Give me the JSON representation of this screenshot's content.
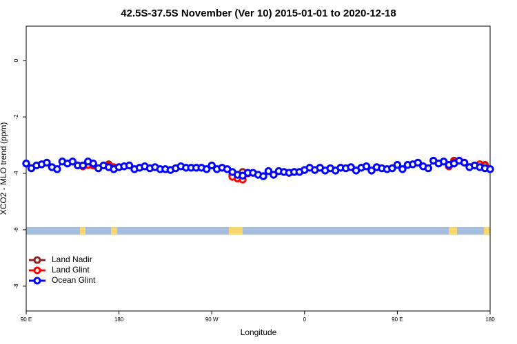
{
  "chart_data": {
    "type": "line",
    "title": "42.5S-37.5S November (Ver 10)   2015-01-01 to 2020-12-18",
    "x_label": "Longitude",
    "y_label": "XCO2 - MLO trend (ppm)",
    "x": [
      90,
      95,
      100,
      105,
      110,
      115,
      120,
      125,
      130,
      135,
      140,
      145,
      150,
      155,
      160,
      165,
      170,
      175,
      180,
      185,
      190,
      195,
      200,
      205,
      210,
      215,
      220,
      225,
      230,
      235,
      240,
      245,
      250,
      255,
      260,
      265,
      270,
      275,
      280,
      285,
      290,
      295,
      300,
      305,
      310,
      315,
      320,
      325,
      330,
      335,
      340,
      345,
      350,
      355,
      360,
      365,
      370,
      375,
      380,
      385,
      390,
      395,
      400,
      405,
      410,
      415,
      420,
      425,
      430,
      435,
      440,
      445,
      450,
      455,
      460,
      465,
      470,
      475,
      480,
      485,
      490,
      495,
      500,
      505,
      510,
      515,
      520,
      525,
      530,
      535,
      540
    ],
    "xlim": [
      90,
      540
    ],
    "xticks": [
      {
        "value": 90,
        "label": "90 E"
      },
      180,
      {
        "value": 270,
        "label": "90 W"
      },
      {
        "value": 360,
        "label": "0"
      },
      {
        "value": 450,
        "label": "90 E"
      },
      {
        "value": 540,
        "label": "180"
      }
    ],
    "ylim": [
      -8.88,
      1.22
    ],
    "yticks": [
      0,
      -2,
      -4,
      -6,
      -8
    ],
    "legend": "bottomleft",
    "series": [
      {
        "name": "Land Nadir",
        "color": "#8b2323",
        "values": [
          null,
          null,
          null,
          null,
          null,
          null,
          null,
          null,
          null,
          null,
          null,
          null,
          -3.6,
          null,
          null,
          null,
          -3.68,
          null,
          null,
          null,
          null,
          null,
          null,
          null,
          null,
          null,
          null,
          null,
          null,
          null,
          null,
          null,
          null,
          null,
          null,
          null,
          null,
          null,
          null,
          null,
          -4.05,
          null,
          -3.95,
          null,
          null,
          null,
          null,
          null,
          null,
          null,
          null,
          null,
          null,
          null,
          null,
          null,
          null,
          null,
          null,
          null,
          null,
          null,
          null,
          null,
          null,
          null,
          null,
          null,
          null,
          null,
          null,
          null,
          null,
          null,
          null,
          null,
          null,
          null,
          null,
          null,
          null,
          null,
          null,
          -3.55,
          null,
          null,
          null,
          null,
          null,
          -3.7,
          null
        ]
      },
      {
        "name": "Land Glint",
        "color": "#ff0000",
        "values": [
          null,
          null,
          null,
          null,
          null,
          null,
          null,
          null,
          null,
          null,
          null,
          -3.75,
          -3.7,
          -3.72,
          null,
          null,
          -3.72,
          -3.78,
          null,
          null,
          null,
          null,
          null,
          null,
          null,
          null,
          null,
          null,
          null,
          null,
          null,
          null,
          null,
          null,
          null,
          null,
          null,
          null,
          null,
          null,
          -4.12,
          -4.18,
          -4.22,
          -4.0,
          null,
          null,
          null,
          null,
          null,
          null,
          null,
          null,
          null,
          null,
          null,
          null,
          null,
          null,
          null,
          null,
          null,
          null,
          null,
          null,
          null,
          null,
          null,
          null,
          null,
          null,
          null,
          null,
          null,
          null,
          null,
          null,
          null,
          null,
          null,
          null,
          null,
          null,
          -3.75,
          -3.58,
          null,
          null,
          null,
          null,
          -3.68,
          -3.72,
          null
        ]
      },
      {
        "name": "Ocean Glint",
        "color": "#0000ff",
        "values": [
          -3.65,
          -3.82,
          -3.72,
          -3.68,
          -3.62,
          -3.78,
          -3.85,
          -3.58,
          -3.65,
          -3.58,
          -3.72,
          -3.72,
          -3.58,
          -3.65,
          -3.82,
          -3.72,
          -3.78,
          -3.85,
          -3.78,
          -3.75,
          -3.72,
          -3.85,
          -3.8,
          -3.75,
          -3.82,
          -3.78,
          -3.85,
          -3.85,
          -3.88,
          -3.82,
          -3.75,
          -3.8,
          -3.8,
          -3.8,
          -3.8,
          -3.85,
          -3.72,
          -3.85,
          -3.8,
          -3.85,
          -3.95,
          -4.05,
          -4.08,
          -3.98,
          -3.98,
          -4.05,
          -4.1,
          -3.92,
          -4.05,
          -3.92,
          -3.95,
          -3.98,
          -3.95,
          -3.95,
          -3.88,
          -3.8,
          -3.88,
          -3.8,
          -3.9,
          -3.82,
          -3.9,
          -3.8,
          -3.82,
          -3.78,
          -3.9,
          -3.8,
          -3.75,
          -3.9,
          -3.78,
          -3.82,
          -3.85,
          -3.82,
          -3.7,
          -3.85,
          -3.7,
          -3.68,
          -3.62,
          -3.75,
          -3.82,
          -3.55,
          -3.65,
          -3.58,
          -3.7,
          -3.65,
          -3.55,
          -3.62,
          -3.78,
          -3.72,
          -3.78,
          -3.82,
          -3.85
        ]
      }
    ]
  }
}
